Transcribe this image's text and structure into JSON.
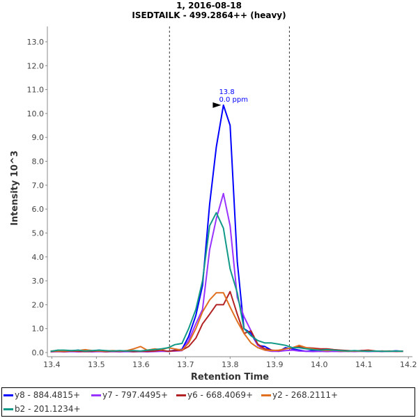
{
  "chart_data": {
    "type": "line",
    "title": "1, 2016-08-18",
    "subtitle": "ISEDTAILK - 499.2864++ (heavy)",
    "xlabel": "Retention Time",
    "ylabel": "Intensity 10^3",
    "xlim": [
      13.39,
      14.209
    ],
    "ylim": [
      -0.175,
      13.64
    ],
    "grid": false,
    "legend_position": "bottom",
    "xticks": [
      "13.4",
      "13.5",
      "13.6",
      "13.7",
      "13.8",
      "13.9",
      "14.0",
      "14.1",
      "14.2"
    ],
    "yticks": [
      "0.0",
      "1.0",
      "2.0",
      "3.0",
      "4.0",
      "5.0",
      "6.0",
      "7.0",
      "8.0",
      "9.0",
      "10.0",
      "11.0",
      "12.0",
      "13.0"
    ],
    "boundaries": [
      13.664,
      13.933
    ],
    "annotation": {
      "x": 13.783,
      "y": 10.35,
      "line1": "13.8",
      "line2": "0.0 ppm",
      "color": "#0000ff"
    },
    "x": [
      13.397,
      13.413,
      13.428,
      13.444,
      13.459,
      13.475,
      13.49,
      13.506,
      13.521,
      13.537,
      13.552,
      13.568,
      13.583,
      13.599,
      13.614,
      13.63,
      13.645,
      13.661,
      13.676,
      13.692,
      13.707,
      13.723,
      13.738,
      13.754,
      13.769,
      13.785,
      13.8,
      13.816,
      13.831,
      13.847,
      13.862,
      13.878,
      13.893,
      13.909,
      13.924,
      13.94,
      13.955,
      13.971,
      13.986,
      14.002,
      14.017,
      14.033,
      14.048,
      14.064,
      14.079,
      14.095,
      14.11,
      14.126,
      14.141,
      14.157,
      14.172,
      14.188
    ],
    "series": [
      {
        "name": "y8 - 884.4815+",
        "color": "#0000ff",
        "values": [
          0.05,
          0.05,
          0.06,
          0.05,
          0.1,
          0.05,
          0.06,
          0.1,
          0.06,
          0.05,
          0.05,
          0.06,
          0.05,
          0.05,
          0.08,
          0.05,
          0.06,
          0.05,
          0.1,
          0.13,
          0.67,
          1.55,
          2.8,
          6.2,
          8.6,
          10.35,
          9.5,
          3.8,
          1.0,
          0.8,
          0.3,
          0.25,
          0.1,
          0.05,
          0.2,
          0.15,
          0.1,
          0.05,
          0.08,
          0.05,
          0.1,
          0.05,
          0.06,
          0.05,
          0.05,
          0.08,
          0.05,
          0.05,
          0.06,
          0.05,
          0.07,
          0.05
        ]
      },
      {
        "name": "y7 - 797.4495+",
        "color": "#9933ff",
        "values": [
          0.03,
          0.04,
          0.03,
          0.04,
          0.03,
          0.04,
          0.03,
          0.04,
          0.03,
          0.04,
          0.03,
          0.04,
          0.03,
          0.04,
          0.03,
          0.04,
          0.05,
          0.05,
          0.06,
          0.08,
          0.5,
          1.2,
          1.8,
          4.3,
          5.6,
          6.65,
          5.3,
          2.3,
          1.5,
          0.9,
          0.3,
          0.1,
          0.05,
          0.05,
          0.08,
          0.1,
          0.06,
          0.05,
          0.04,
          0.05,
          0.04,
          0.05,
          0.04,
          0.05,
          0.04,
          0.05,
          0.04,
          0.05,
          0.04,
          0.05,
          0.04,
          0.05
        ]
      },
      {
        "name": "y6 - 668.4069+",
        "color": "#b22222",
        "values": [
          0.04,
          0.05,
          0.04,
          0.06,
          0.05,
          0.04,
          0.05,
          0.06,
          0.04,
          0.05,
          0.05,
          0.06,
          0.04,
          0.05,
          0.05,
          0.06,
          0.1,
          0.05,
          0.08,
          0.1,
          0.25,
          0.6,
          1.2,
          1.6,
          2.0,
          2.0,
          2.55,
          1.6,
          0.8,
          0.9,
          0.35,
          0.15,
          0.1,
          0.08,
          0.15,
          0.2,
          0.25,
          0.2,
          0.18,
          0.15,
          0.15,
          0.12,
          0.1,
          0.08,
          0.06,
          0.08,
          0.1,
          0.06,
          0.05,
          0.06,
          0.05,
          0.05
        ]
      },
      {
        "name": "y2 - 268.2111+",
        "color": "#e07020",
        "values": [
          0.06,
          0.07,
          0.06,
          0.08,
          0.08,
          0.12,
          0.08,
          0.07,
          0.06,
          0.08,
          0.06,
          0.08,
          0.15,
          0.25,
          0.1,
          0.15,
          0.12,
          0.2,
          0.15,
          0.1,
          0.4,
          1.0,
          1.7,
          2.2,
          2.5,
          2.5,
          1.9,
          1.3,
          0.8,
          0.4,
          0.2,
          0.1,
          0.08,
          0.1,
          0.15,
          0.2,
          0.3,
          0.2,
          0.15,
          0.1,
          0.08,
          0.1,
          0.06,
          0.05,
          0.06,
          0.05,
          0.06,
          0.05,
          0.06,
          0.05,
          0.05,
          0.05
        ]
      },
      {
        "name": "b2 - 201.1234+",
        "color": "#119988",
        "values": [
          0.05,
          0.1,
          0.1,
          0.08,
          0.1,
          0.06,
          0.08,
          0.1,
          0.08,
          0.06,
          0.08,
          0.06,
          0.08,
          0.06,
          0.1,
          0.12,
          0.15,
          0.2,
          0.33,
          0.38,
          1.0,
          1.8,
          3.0,
          5.3,
          5.85,
          5.2,
          3.5,
          2.5,
          1.0,
          0.7,
          0.5,
          0.4,
          0.4,
          0.35,
          0.3,
          0.2,
          0.2,
          0.15,
          0.12,
          0.1,
          0.12,
          0.1,
          0.08,
          0.06,
          0.08,
          0.06,
          0.05,
          0.06,
          0.05,
          0.05,
          0.06,
          0.05
        ]
      }
    ]
  }
}
